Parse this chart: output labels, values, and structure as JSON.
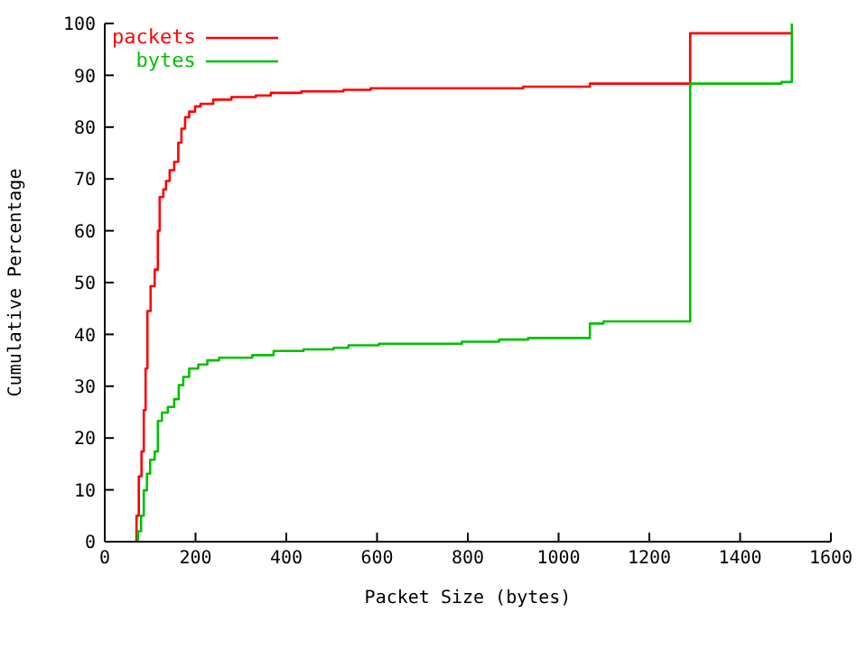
{
  "chart_data": {
    "type": "step",
    "xlabel": "Packet Size (bytes)",
    "ylabel": "Cumulative Percentage",
    "xlim": [
      0,
      1600
    ],
    "xticks": [
      0,
      200,
      400,
      600,
      800,
      1000,
      1200,
      1400,
      1600
    ],
    "ylim": [
      0,
      100
    ],
    "yticks": [
      0,
      10,
      20,
      30,
      40,
      50,
      60,
      70,
      80,
      90,
      100
    ],
    "grid": false,
    "legend": "top left",
    "series": [
      {
        "name": "packets",
        "color": "#ff0000",
        "x": [
          66,
          70,
          75,
          81,
          86,
          90,
          94,
          101,
          110,
          117,
          121,
          129,
          135,
          143,
          153,
          162,
          169,
          177,
          186,
          199,
          211,
          239,
          279,
          333,
          366,
          433,
          526,
          586,
          922,
          1069,
          1290,
          1514
        ],
        "values": [
          0,
          5,
          12.6,
          17.4,
          25.4,
          33.4,
          44.5,
          49.3,
          52.5,
          60,
          66.5,
          68,
          69.6,
          71.7,
          73.3,
          77,
          79.7,
          81.9,
          83,
          84,
          84.5,
          85.3,
          85.8,
          86.1,
          86.6,
          86.9,
          87.2,
          87.5,
          87.8,
          88.4,
          98.1,
          98.1
        ]
      },
      {
        "name": "bytes",
        "color": "#00c000",
        "x": [
          66,
          73,
          80,
          86,
          93,
          100,
          110,
          117,
          126,
          139,
          153,
          163,
          173,
          186,
          206,
          226,
          252,
          325,
          372,
          438,
          504,
          537,
          604,
          787,
          869,
          933,
          1069,
          1099,
          1290,
          1491,
          1514
        ],
        "values": [
          0,
          2,
          5,
          9.9,
          13.1,
          15.8,
          17.4,
          23.3,
          24.9,
          26,
          27.5,
          30.2,
          31.8,
          33.4,
          34.2,
          35,
          35.5,
          36,
          36.8,
          37.1,
          37.4,
          37.9,
          38.2,
          38.6,
          39,
          39.3,
          42.1,
          42.5,
          88.4,
          88.7,
          100
        ]
      }
    ]
  }
}
